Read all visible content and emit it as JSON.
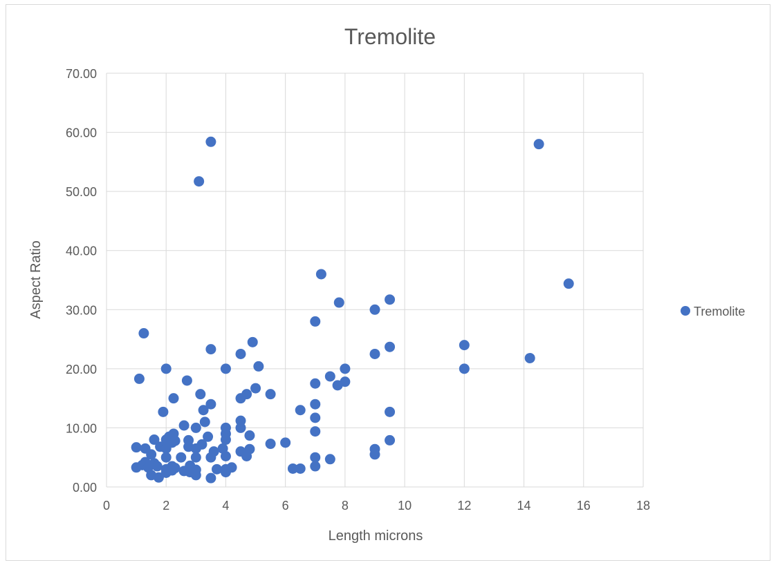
{
  "chart_data": {
    "type": "scatter",
    "title": "Tremolite",
    "xlabel": "Length microns",
    "ylabel": "Aspect Ratio",
    "xlim": [
      0,
      18
    ],
    "ylim": [
      0,
      70
    ],
    "x_ticks": [
      "0",
      "2",
      "4",
      "6",
      "8",
      "10",
      "12",
      "14",
      "16",
      "18"
    ],
    "y_ticks": [
      "0.00",
      "10.00",
      "20.00",
      "30.00",
      "40.00",
      "50.00",
      "60.00",
      "70.00"
    ],
    "grid": true,
    "legend_position": "right",
    "series": [
      {
        "name": "Tremolite",
        "color": "#4472C4",
        "marker": "circle",
        "points": [
          [
            1,
            6.7
          ],
          [
            1,
            3.3
          ],
          [
            1.1,
            18.3
          ],
          [
            1.25,
            26
          ],
          [
            1.2,
            3.7
          ],
          [
            1.3,
            6.5
          ],
          [
            1.3,
            4.2
          ],
          [
            1.4,
            3.3
          ],
          [
            1.5,
            5.5
          ],
          [
            1.5,
            2
          ],
          [
            1.6,
            8
          ],
          [
            1.6,
            4
          ],
          [
            1.7,
            3.5
          ],
          [
            1.75,
            1.6
          ],
          [
            1.8,
            6.8
          ],
          [
            1.9,
            12.7
          ],
          [
            2,
            20
          ],
          [
            2,
            8
          ],
          [
            2,
            6.5
          ],
          [
            2,
            5
          ],
          [
            2,
            3
          ],
          [
            2,
            2.4
          ],
          [
            2.1,
            8.5
          ],
          [
            2.2,
            7.5
          ],
          [
            2.2,
            3.5
          ],
          [
            2.2,
            2.8
          ],
          [
            2.25,
            15
          ],
          [
            2.25,
            9
          ],
          [
            2.3,
            7.8
          ],
          [
            2.3,
            3.2
          ],
          [
            2.5,
            5
          ],
          [
            2.6,
            10.4
          ],
          [
            2.6,
            2.7
          ],
          [
            2.7,
            18
          ],
          [
            2.75,
            7.9
          ],
          [
            2.75,
            6.8
          ],
          [
            2.8,
            3.6
          ],
          [
            2.8,
            2.5
          ],
          [
            3,
            10
          ],
          [
            3,
            6.5
          ],
          [
            3,
            5
          ],
          [
            3,
            2.9
          ],
          [
            3,
            2
          ],
          [
            3.1,
            51.7
          ],
          [
            3.15,
            15.7
          ],
          [
            3.2,
            7.2
          ],
          [
            3.25,
            13
          ],
          [
            3.3,
            11
          ],
          [
            3.4,
            8.5
          ],
          [
            3.5,
            58.4
          ],
          [
            3.5,
            23.3
          ],
          [
            3.5,
            14
          ],
          [
            3.5,
            5
          ],
          [
            3.5,
            1.5
          ],
          [
            3.6,
            6
          ],
          [
            3.7,
            3
          ],
          [
            3.9,
            6.5
          ],
          [
            4,
            20
          ],
          [
            4,
            10
          ],
          [
            4,
            9
          ],
          [
            4,
            8
          ],
          [
            4,
            5.2
          ],
          [
            4,
            3
          ],
          [
            4,
            2.5
          ],
          [
            4.2,
            3.3
          ],
          [
            4.5,
            22.5
          ],
          [
            4.5,
            15
          ],
          [
            4.5,
            11.2
          ],
          [
            4.5,
            10
          ],
          [
            4.5,
            6
          ],
          [
            4.7,
            15.7
          ],
          [
            4.7,
            5.2
          ],
          [
            4.8,
            8.7
          ],
          [
            4.8,
            6.4
          ],
          [
            4.9,
            24.5
          ],
          [
            5,
            16.7
          ],
          [
            5.1,
            20.4
          ],
          [
            5.5,
            15.7
          ],
          [
            5.5,
            7.3
          ],
          [
            6,
            7.5
          ],
          [
            6.25,
            3.1
          ],
          [
            6.5,
            13
          ],
          [
            6.5,
            3.1
          ],
          [
            7,
            28
          ],
          [
            7,
            17.5
          ],
          [
            7,
            14
          ],
          [
            7,
            11.7
          ],
          [
            7,
            9.4
          ],
          [
            7,
            5
          ],
          [
            7,
            3.5
          ],
          [
            7.2,
            36
          ],
          [
            7.5,
            18.7
          ],
          [
            7.5,
            4.7
          ],
          [
            7.75,
            17.2
          ],
          [
            7.8,
            31.2
          ],
          [
            8,
            20
          ],
          [
            8,
            17.8
          ],
          [
            9,
            30
          ],
          [
            9,
            22.5
          ],
          [
            9,
            6.4
          ],
          [
            9,
            5.5
          ],
          [
            9.5,
            31.7
          ],
          [
            9.5,
            23.7
          ],
          [
            9.5,
            12.7
          ],
          [
            9.5,
            7.9
          ],
          [
            12,
            24
          ],
          [
            12,
            20
          ],
          [
            14.2,
            21.8
          ],
          [
            14.5,
            58
          ],
          [
            15.5,
            34.4
          ]
        ]
      }
    ]
  }
}
